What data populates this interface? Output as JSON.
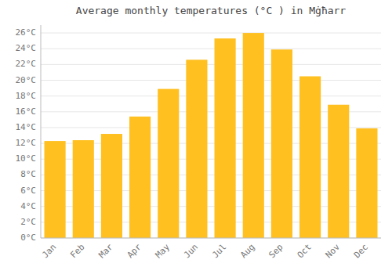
{
  "chart_data": {
    "type": "bar",
    "title": "Average monthly temperatures (°C ) in Mġħarr",
    "categories": [
      "Jan",
      "Feb",
      "Mar",
      "Apr",
      "May",
      "Jun",
      "Jul",
      "Aug",
      "Sep",
      "Oct",
      "Nov",
      "Dec"
    ],
    "values": [
      12.3,
      12.4,
      13.2,
      15.4,
      18.9,
      22.6,
      25.3,
      26.0,
      23.9,
      20.5,
      16.9,
      13.9
    ],
    "color": "#FFC020",
    "ylim": [
      0,
      27
    ],
    "yticks": [
      {
        "value": 0,
        "label": "0°C"
      },
      {
        "value": 2,
        "label": "2°C"
      },
      {
        "value": 4,
        "label": "4°C"
      },
      {
        "value": 6,
        "label": "6°C"
      },
      {
        "value": 8,
        "label": "8°C"
      },
      {
        "value": 10,
        "label": "10°C"
      },
      {
        "value": 12,
        "label": "12°C"
      },
      {
        "value": 14,
        "label": "14°C"
      },
      {
        "value": 16,
        "label": "16°C"
      },
      {
        "value": 18,
        "label": "18°C"
      },
      {
        "value": 20,
        "label": "20°C"
      },
      {
        "value": 22,
        "label": "22°C"
      },
      {
        "value": 24,
        "label": "24°C"
      },
      {
        "value": 26,
        "label": "26°C"
      }
    ],
    "grid": true
  }
}
